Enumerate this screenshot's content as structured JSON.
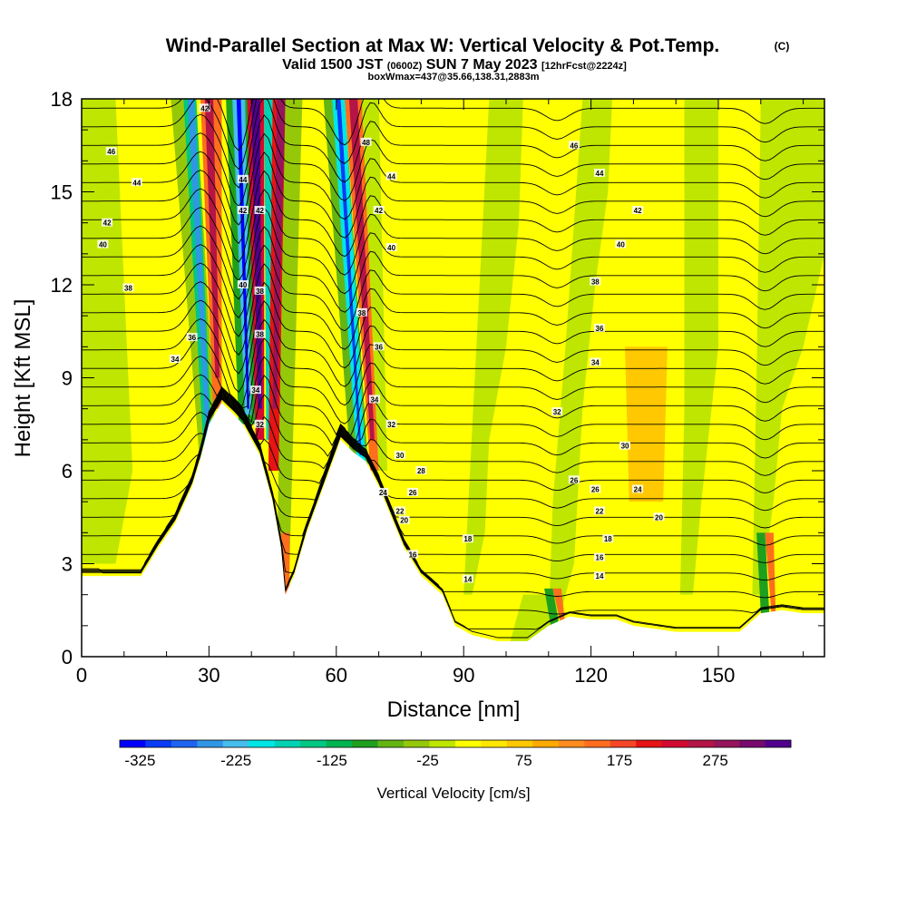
{
  "header": {
    "title": "Wind-Parallel Section at Max W: Vertical Velocity & Pot.Temp.",
    "title_mark": "(C)",
    "valid_prefix": "Valid 1500 JST",
    "valid_z": "(0600Z)",
    "valid_date": "SUN 7 May 2023",
    "valid_fcst": "[12hrFcst@2224z]",
    "box_info": "boxWmax=437@35.66,138.31,2883m"
  },
  "chart_data": {
    "type": "heatmap",
    "xlabel": "Distance [nm]",
    "ylabel": "Height [Kft MSL]",
    "xlim": [
      0,
      175
    ],
    "ylim": [
      0,
      18
    ],
    "x_ticks": [
      0,
      30,
      60,
      90,
      120,
      150
    ],
    "y_ticks": [
      0,
      3,
      6,
      9,
      12,
      15,
      18
    ],
    "colorbar": {
      "label": "Vertical Velocity [cm/s]",
      "tick_labels": [
        "-325",
        "-225",
        "-125",
        "-25",
        "75",
        "175",
        "275"
      ],
      "min": -350,
      "max": 350,
      "step": 25,
      "colors": [
        "#0000ff",
        "#0a3cf5",
        "#1e64f0",
        "#3296e6",
        "#46beec",
        "#00e6e6",
        "#00d2b4",
        "#00c882",
        "#00b450",
        "#1ea01e",
        "#64b414",
        "#96c80a",
        "#bee600",
        "#ffff00",
        "#ffe600",
        "#ffc800",
        "#ffaa00",
        "#ff8c1e",
        "#ff6e1e",
        "#f54628",
        "#e61414",
        "#d20a32",
        "#b41446",
        "#96145a",
        "#780a6e",
        "#50008c"
      ]
    },
    "terrain_kft": [
      [
        0,
        2.6
      ],
      [
        10,
        2.6
      ],
      [
        14,
        2.6
      ],
      [
        18,
        3.5
      ],
      [
        22,
        4.3
      ],
      [
        26,
        5.5
      ],
      [
        28,
        6.4
      ],
      [
        30,
        7.5
      ],
      [
        33,
        8.2
      ],
      [
        36,
        7.8
      ],
      [
        38,
        7.5
      ],
      [
        40,
        7.0
      ],
      [
        42,
        6.5
      ],
      [
        45,
        5.0
      ],
      [
        47,
        3.5
      ],
      [
        48,
        2.0
      ],
      [
        50,
        2.6
      ],
      [
        53,
        4.0
      ],
      [
        57,
        5.5
      ],
      [
        61,
        7.0
      ],
      [
        64,
        6.6
      ],
      [
        67,
        6.3
      ],
      [
        70,
        5.5
      ],
      [
        73,
        4.5
      ],
      [
        76,
        3.5
      ],
      [
        80,
        2.6
      ],
      [
        85,
        2.0
      ],
      [
        88,
        1.0
      ],
      [
        92,
        0.7
      ],
      [
        98,
        0.5
      ],
      [
        105,
        0.5
      ],
      [
        110,
        1.0
      ],
      [
        115,
        1.3
      ],
      [
        120,
        1.2
      ],
      [
        126,
        1.2
      ],
      [
        130,
        1.0
      ],
      [
        140,
        0.8
      ],
      [
        150,
        0.8
      ],
      [
        155,
        0.8
      ],
      [
        160,
        1.4
      ],
      [
        165,
        1.5
      ],
      [
        170,
        1.4
      ],
      [
        175,
        1.4
      ]
    ],
    "contour_labels": [
      {
        "x": 7,
        "y": 16.3,
        "text": "46"
      },
      {
        "x": 13,
        "y": 15.3,
        "text": "44"
      },
      {
        "x": 6,
        "y": 14.0,
        "text": "42"
      },
      {
        "x": 5,
        "y": 13.3,
        "text": "40"
      },
      {
        "x": 11,
        "y": 11.9,
        "text": "38"
      },
      {
        "x": 26,
        "y": 10.3,
        "text": "36"
      },
      {
        "x": 22,
        "y": 9.6,
        "text": "34"
      },
      {
        "x": 29,
        "y": 17.7,
        "text": "42"
      },
      {
        "x": 38,
        "y": 15.4,
        "text": "44"
      },
      {
        "x": 38,
        "y": 14.4,
        "text": "42"
      },
      {
        "x": 42,
        "y": 14.4,
        "text": "42"
      },
      {
        "x": 38,
        "y": 12.0,
        "text": "40"
      },
      {
        "x": 42,
        "y": 11.8,
        "text": "38"
      },
      {
        "x": 42,
        "y": 10.4,
        "text": "38"
      },
      {
        "x": 41,
        "y": 8.6,
        "text": "34"
      },
      {
        "x": 42,
        "y": 7.5,
        "text": "32"
      },
      {
        "x": 67,
        "y": 16.6,
        "text": "48"
      },
      {
        "x": 73,
        "y": 15.5,
        "text": "44"
      },
      {
        "x": 70,
        "y": 14.4,
        "text": "42"
      },
      {
        "x": 73,
        "y": 13.2,
        "text": "40"
      },
      {
        "x": 66,
        "y": 11.1,
        "text": "38"
      },
      {
        "x": 70,
        "y": 10.0,
        "text": "36"
      },
      {
        "x": 69,
        "y": 8.3,
        "text": "34"
      },
      {
        "x": 73,
        "y": 7.5,
        "text": "32"
      },
      {
        "x": 75,
        "y": 6.5,
        "text": "30"
      },
      {
        "x": 80,
        "y": 6.0,
        "text": "28"
      },
      {
        "x": 78,
        "y": 5.3,
        "text": "26"
      },
      {
        "x": 71,
        "y": 5.3,
        "text": "24"
      },
      {
        "x": 75,
        "y": 4.7,
        "text": "22"
      },
      {
        "x": 76,
        "y": 4.4,
        "text": "20"
      },
      {
        "x": 78,
        "y": 3.3,
        "text": "16"
      },
      {
        "x": 91,
        "y": 3.8,
        "text": "18"
      },
      {
        "x": 91,
        "y": 2.5,
        "text": "14"
      },
      {
        "x": 116,
        "y": 16.5,
        "text": "46"
      },
      {
        "x": 122,
        "y": 15.6,
        "text": "44"
      },
      {
        "x": 131,
        "y": 14.4,
        "text": "42"
      },
      {
        "x": 127,
        "y": 13.3,
        "text": "40"
      },
      {
        "x": 121,
        "y": 12.1,
        "text": "38"
      },
      {
        "x": 122,
        "y": 10.6,
        "text": "36"
      },
      {
        "x": 121,
        "y": 9.5,
        "text": "34"
      },
      {
        "x": 112,
        "y": 7.9,
        "text": "32"
      },
      {
        "x": 128,
        "y": 6.8,
        "text": "30"
      },
      {
        "x": 116,
        "y": 5.7,
        "text": "26"
      },
      {
        "x": 121,
        "y": 5.4,
        "text": "26"
      },
      {
        "x": 131,
        "y": 5.4,
        "text": "24"
      },
      {
        "x": 122,
        "y": 4.7,
        "text": "22"
      },
      {
        "x": 136,
        "y": 4.5,
        "text": "20"
      },
      {
        "x": 124,
        "y": 3.8,
        "text": "18"
      },
      {
        "x": 122,
        "y": 3.2,
        "text": "16"
      },
      {
        "x": 122,
        "y": 2.6,
        "text": "14"
      }
    ]
  }
}
